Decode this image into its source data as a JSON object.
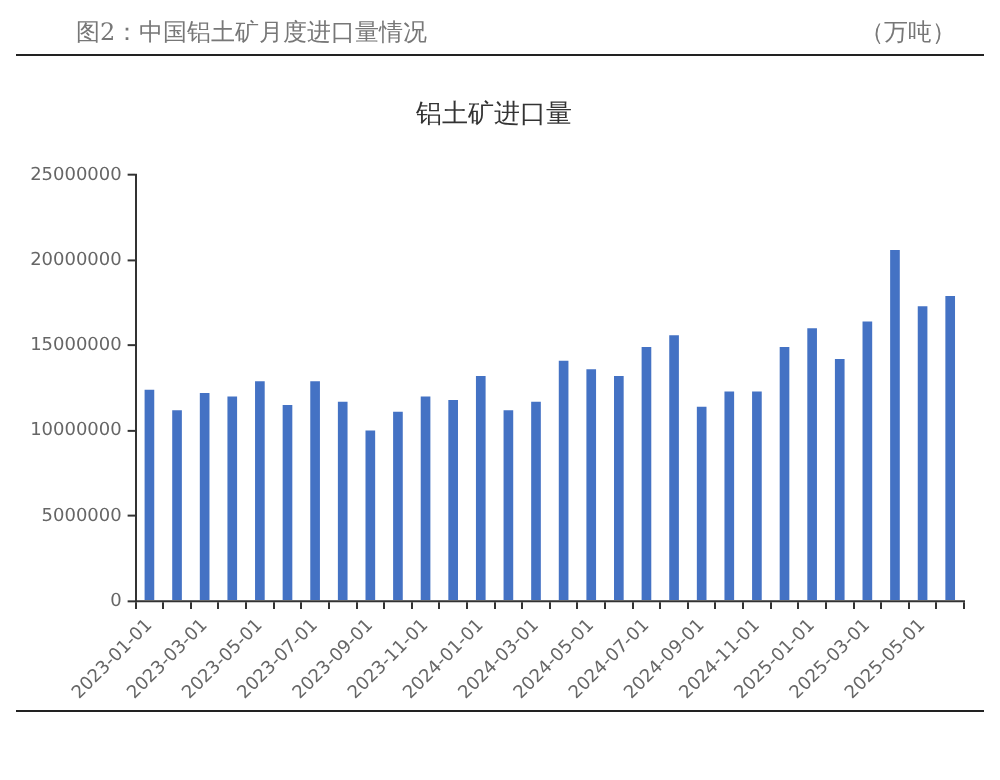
{
  "chart_data": {
    "type": "bar",
    "title": "铝土矿进口量",
    "annotations": [
      "图2：中国铝土矿月度进口量情况",
      "（万吨）"
    ],
    "categories": [
      "2023-01-01",
      null,
      "2023-03-01",
      null,
      "2023-05-01",
      null,
      "2023-07-01",
      null,
      "2023-09-01",
      null,
      "2023-11-01",
      null,
      "2024-01-01",
      null,
      "2024-03-01",
      null,
      "2024-05-01",
      null,
      "2024-07-01",
      null,
      "2024-09-01",
      null,
      "2024-11-01",
      null,
      "2025-01-01",
      null,
      "2025-03-01",
      null,
      "2025-05-01",
      null
    ],
    "values": [
      12400000,
      11200000,
      12200000,
      12000000,
      12900000,
      11500000,
      12900000,
      11700000,
      10000000,
      11100000,
      12000000,
      11800000,
      13200000,
      11200000,
      11700000,
      14100000,
      13600000,
      13200000,
      14900000,
      15600000,
      11400000,
      12300000,
      12300000,
      14900000,
      16000000,
      14200000,
      16400000,
      20600000,
      17300000,
      17900000
    ],
    "color": "#4472c4",
    "ylim": [
      0,
      25000000
    ],
    "yticks": [
      0,
      5000000,
      10000000,
      15000000,
      20000000,
      25000000
    ],
    "grid": false
  }
}
